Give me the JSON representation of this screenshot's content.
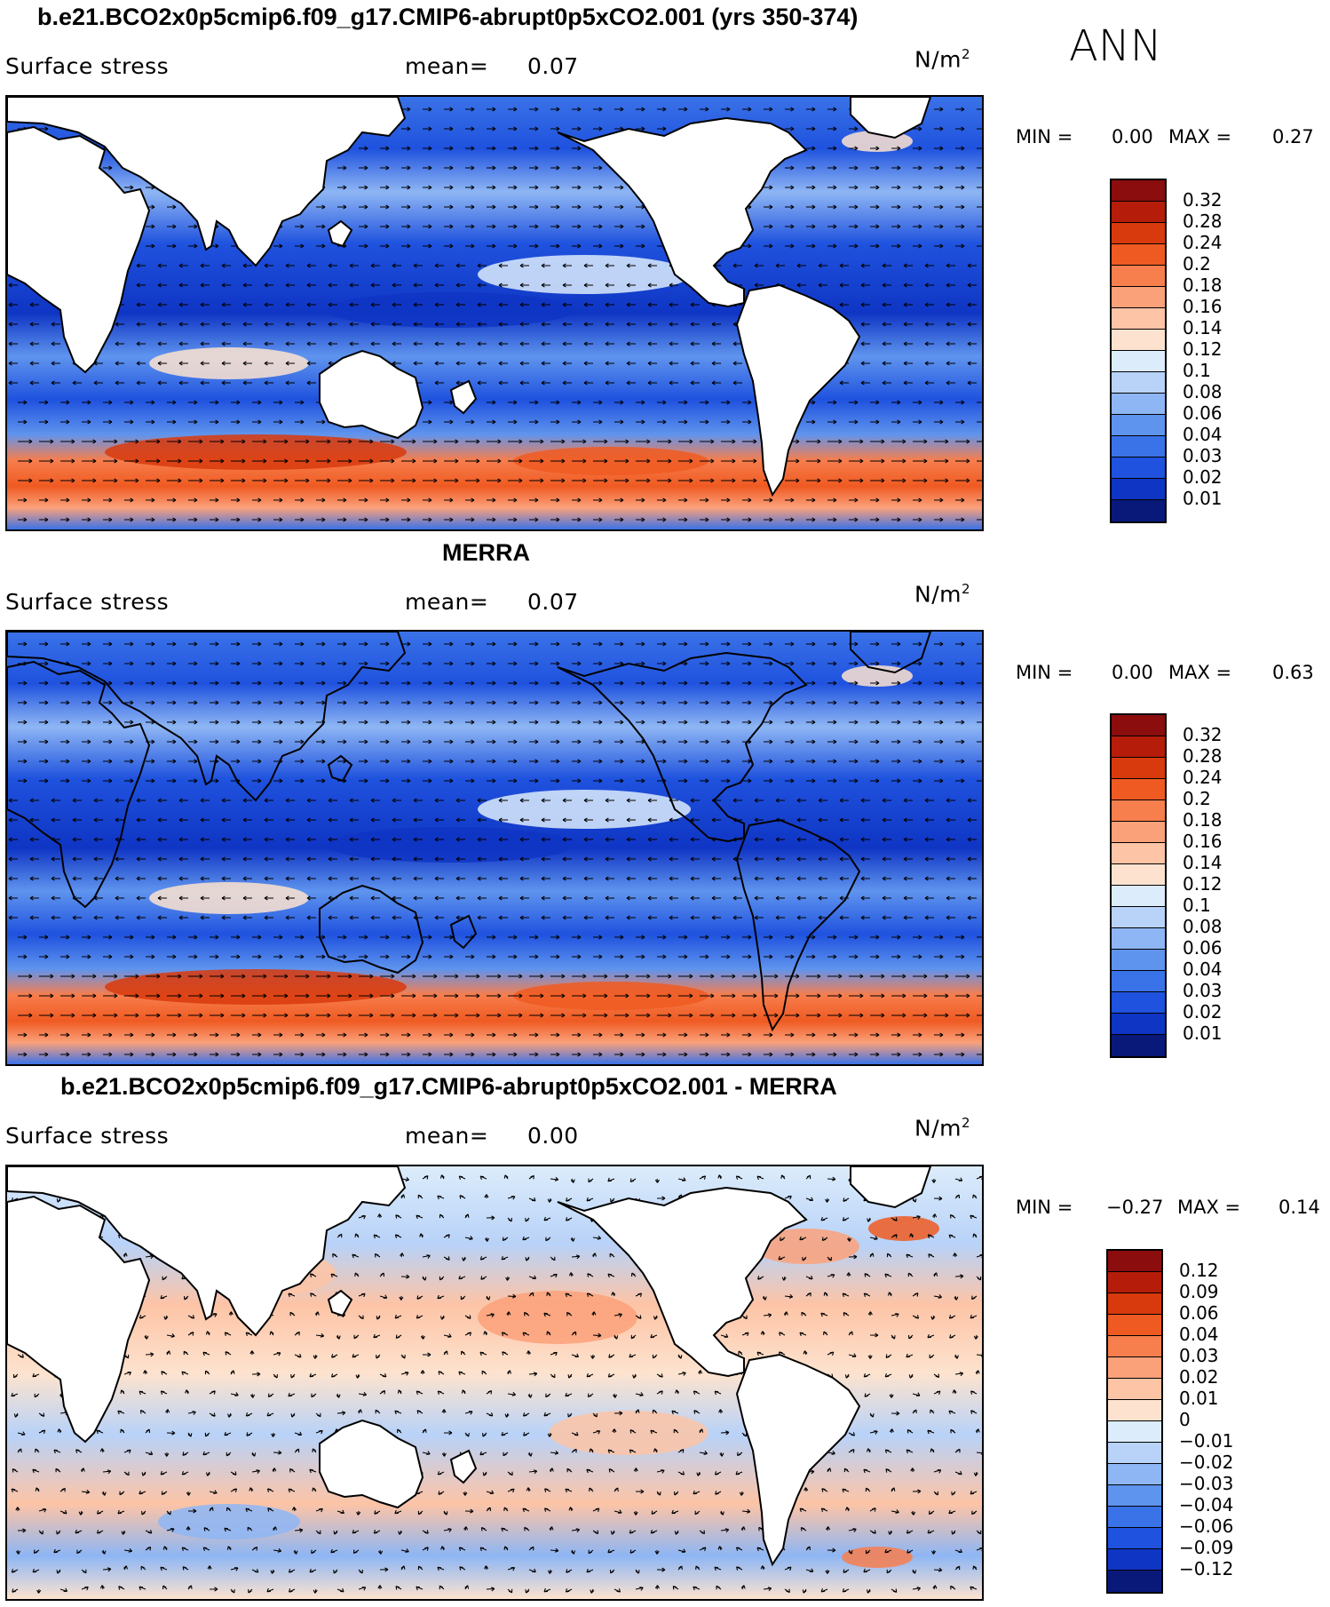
{
  "season": "ANN",
  "units_base": "N/m",
  "units_sup": "2",
  "panels": [
    {
      "title": "b.e21.BCO2x0p5cmip6.f09_g17.CMIP6-abrupt0p5xCO2.001 (yrs 350-374)",
      "variable": "Surface stress",
      "mean_label": "mean=",
      "mean_value": "0.07",
      "min_label": "MIN =",
      "min_value": "0.00",
      "max_label": "MAX =",
      "max_value": "0.27",
      "kind": "model",
      "colorbar": {
        "colors": [
          "#8b0d0d",
          "#b51d0a",
          "#d83a0d",
          "#ef5a22",
          "#f77e4d",
          "#fba17a",
          "#fdc4a6",
          "#fde3cf",
          "#dcecfb",
          "#b8d2f8",
          "#8eb6f4",
          "#5f94ee",
          "#3a72e8",
          "#1f52de",
          "#0f35c4",
          "#08197a"
        ],
        "labels": [
          "0.32",
          "0.28",
          "0.24",
          "0.2",
          "0.18",
          "0.16",
          "0.14",
          "0.12",
          "0.1",
          "0.08",
          "0.06",
          "0.04",
          "0.03",
          "0.02",
          "0.01"
        ]
      }
    },
    {
      "title": "MERRA",
      "variable": "Surface stress",
      "mean_label": "mean=",
      "mean_value": "0.07",
      "min_label": "MIN =",
      "min_value": "0.00",
      "max_label": "MAX =",
      "max_value": "0.63",
      "kind": "obs",
      "colorbar": {
        "colors": [
          "#8b0d0d",
          "#b51d0a",
          "#d83a0d",
          "#ef5a22",
          "#f77e4d",
          "#fba17a",
          "#fdc4a6",
          "#fde3cf",
          "#dcecfb",
          "#b8d2f8",
          "#8eb6f4",
          "#5f94ee",
          "#3a72e8",
          "#1f52de",
          "#0f35c4",
          "#08197a"
        ],
        "labels": [
          "0.32",
          "0.28",
          "0.24",
          "0.2",
          "0.18",
          "0.16",
          "0.14",
          "0.12",
          "0.1",
          "0.08",
          "0.06",
          "0.04",
          "0.03",
          "0.02",
          "0.01"
        ]
      }
    },
    {
      "title": "b.e21.BCO2x0p5cmip6.f09_g17.CMIP6-abrupt0p5xCO2.001 - MERRA",
      "variable": "Surface stress",
      "mean_label": "mean=",
      "mean_value": "0.00",
      "min_label": "MIN =",
      "min_value": "−0.27",
      "max_label": "MAX =",
      "max_value": "0.14",
      "kind": "diff",
      "colorbar": {
        "colors": [
          "#8b0d0d",
          "#b51d0a",
          "#d83a0d",
          "#ef5a22",
          "#f77e4d",
          "#fba17a",
          "#fdc4a6",
          "#fde3cf",
          "#dcecfb",
          "#b8d2f8",
          "#8eb6f4",
          "#5f94ee",
          "#3a72e8",
          "#1f52de",
          "#0f35c4",
          "#08197a"
        ],
        "labels": [
          "0.12",
          "0.09",
          "0.06",
          "0.04",
          "0.03",
          "0.02",
          "0.01",
          "0",
          "−0.01",
          "−0.02",
          "−0.03",
          "−0.04",
          "−0.06",
          "−0.09",
          "−0.12"
        ]
      }
    }
  ]
}
